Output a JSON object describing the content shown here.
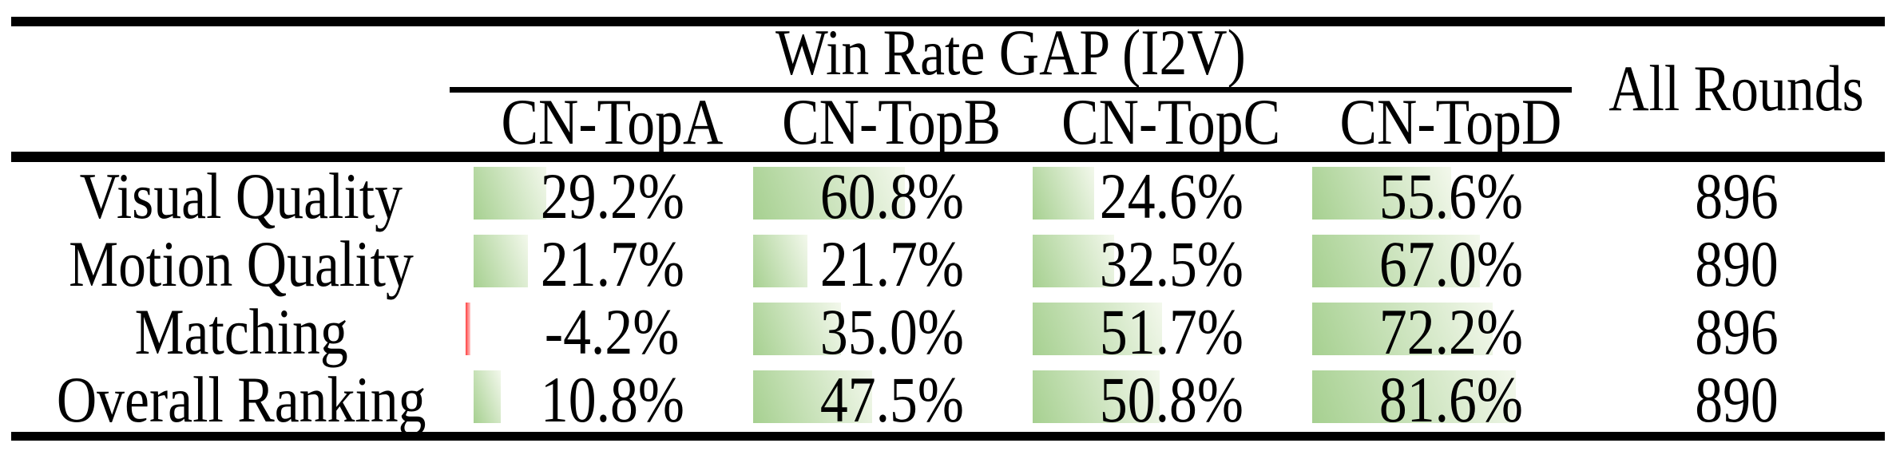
{
  "table": {
    "title": "Win Rate GAP (I2V)",
    "all_rounds_header": "All Rounds",
    "columns": [
      {
        "label": "CN-TopA"
      },
      {
        "label": "CN-TopB"
      },
      {
        "label": "CN-TopC"
      },
      {
        "label": "CN-TopD"
      }
    ],
    "rows": [
      {
        "label": "Visual Quality",
        "cells": [
          {
            "display": "29.2%",
            "value": 29.2
          },
          {
            "display": "60.8%",
            "value": 60.8
          },
          {
            "display": "24.6%",
            "value": 24.6
          },
          {
            "display": "55.6%",
            "value": 55.6
          }
        ],
        "all_rounds": "896"
      },
      {
        "label": "Motion Quality",
        "cells": [
          {
            "display": "21.7%",
            "value": 21.7
          },
          {
            "display": "21.7%",
            "value": 21.7
          },
          {
            "display": "32.5%",
            "value": 32.5
          },
          {
            "display": "67.0%",
            "value": 67.0
          }
        ],
        "all_rounds": "890"
      },
      {
        "label": "Matching",
        "cells": [
          {
            "display": "-4.2%",
            "value": -4.2
          },
          {
            "display": "35.0%",
            "value": 35.0
          },
          {
            "display": "51.7%",
            "value": 51.7
          },
          {
            "display": "72.2%",
            "value": 72.2
          }
        ],
        "all_rounds": "896"
      },
      {
        "label": "Overall Ranking",
        "cells": [
          {
            "display": "10.8%",
            "value": 10.8
          },
          {
            "display": "47.5%",
            "value": 47.5
          },
          {
            "display": "50.8%",
            "value": 50.8
          },
          {
            "display": "81.6%",
            "value": 81.6
          }
        ],
        "all_rounds": "890"
      }
    ],
    "colors": {
      "bar_positive_start": "#a6d090",
      "bar_positive_end": "#f3f8ec",
      "bar_negative_start": "#ff4040",
      "bar_negative_end": "#ffc9c9",
      "rule": "#000000",
      "text": "#000000"
    }
  },
  "chart_data": {
    "type": "table",
    "title": "Win Rate GAP (I2V)",
    "columns": [
      "CN-TopA",
      "CN-TopB",
      "CN-TopC",
      "CN-TopD",
      "All Rounds"
    ],
    "row_labels": [
      "Visual Quality",
      "Motion Quality",
      "Matching",
      "Overall Ranking"
    ],
    "rows": [
      [
        29.2,
        60.8,
        24.6,
        55.6,
        896
      ],
      [
        21.7,
        21.7,
        32.5,
        67.0,
        890
      ],
      [
        -4.2,
        35.0,
        51.7,
        72.2,
        896
      ],
      [
        10.8,
        47.5,
        50.8,
        81.6,
        890
      ]
    ],
    "layout_hints": "percent cells carry green gradient data bars proportional to value; negative value shown with small red bar at cell left edge"
  }
}
